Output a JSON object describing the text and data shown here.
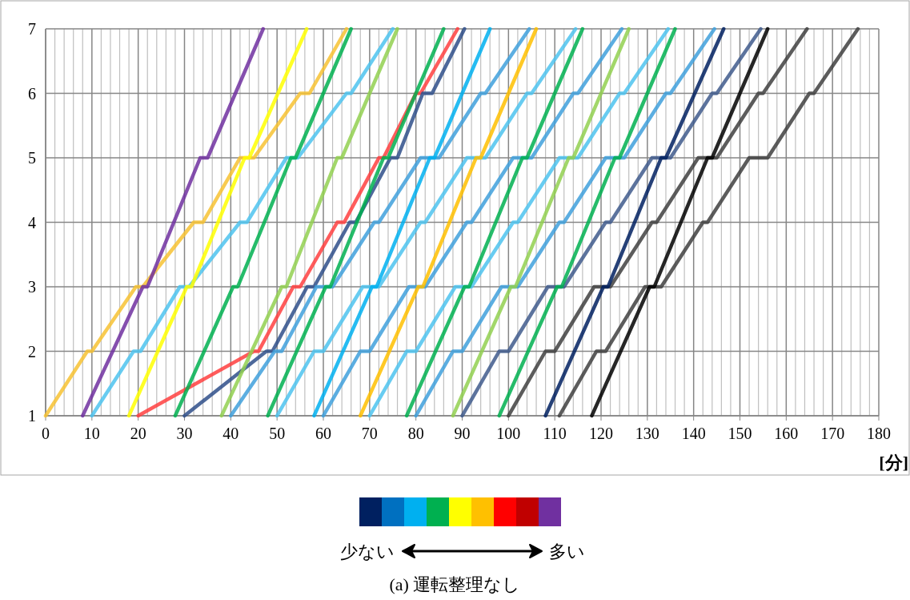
{
  "chart_data": [
    {
      "type": "line",
      "xlabel": "[分]",
      "xlim": [
        0,
        180
      ],
      "ylim": [
        1,
        7
      ],
      "grid": true,
      "line_style": "solid",
      "xticks": [
        0,
        {
          "value": 2,
          "label": null
        },
        {
          "value": 4,
          "label": null
        },
        {
          "value": 6,
          "label": null
        },
        {
          "value": 8,
          "label": null
        },
        10,
        {
          "value": 12,
          "label": null
        },
        {
          "value": 14,
          "label": null
        },
        {
          "value": 16,
          "label": null
        },
        {
          "value": 18,
          "label": null
        },
        20,
        {
          "value": 22,
          "label": null
        },
        {
          "value": 24,
          "label": null
        },
        {
          "value": 26,
          "label": null
        },
        {
          "value": 28,
          "label": null
        },
        30,
        {
          "value": 32,
          "label": null
        },
        {
          "value": 34,
          "label": null
        },
        {
          "value": 36,
          "label": null
        },
        {
          "value": 38,
          "label": null
        },
        40,
        {
          "value": 42,
          "label": null
        },
        {
          "value": 44,
          "label": null
        },
        {
          "value": 46,
          "label": null
        },
        {
          "value": 48,
          "label": null
        },
        50,
        {
          "value": 52,
          "label": null
        },
        {
          "value": 54,
          "label": null
        },
        {
          "value": 56,
          "label": null
        },
        {
          "value": 58,
          "label": null
        },
        60,
        {
          "value": 62,
          "label": null
        },
        {
          "value": 64,
          "label": null
        },
        {
          "value": 66,
          "label": null
        },
        {
          "value": 68,
          "label": null
        },
        70,
        {
          "value": 72,
          "label": null
        },
        {
          "value": 74,
          "label": null
        },
        {
          "value": 76,
          "label": null
        },
        {
          "value": 78,
          "label": null
        },
        80,
        {
          "value": 82,
          "label": null
        },
        {
          "value": 84,
          "label": null
        },
        {
          "value": 86,
          "label": null
        },
        {
          "value": 88,
          "label": null
        },
        90,
        {
          "value": 92,
          "label": null
        },
        {
          "value": 94,
          "label": null
        },
        {
          "value": 96,
          "label": null
        },
        {
          "value": 98,
          "label": null
        },
        100,
        {
          "value": 102,
          "label": null
        },
        {
          "value": 104,
          "label": null
        },
        {
          "value": 106,
          "label": null
        },
        {
          "value": 108,
          "label": null
        },
        110,
        {
          "value": 112,
          "label": null
        },
        {
          "value": 114,
          "label": null
        },
        {
          "value": 116,
          "label": null
        },
        {
          "value": 118,
          "label": null
        },
        120,
        {
          "value": 122,
          "label": null
        },
        {
          "value": 124,
          "label": null
        },
        {
          "value": 126,
          "label": null
        },
        {
          "value": 128,
          "label": null
        },
        130,
        {
          "value": 132,
          "label": null
        },
        {
          "value": 134,
          "label": null
        },
        {
          "value": 136,
          "label": null
        },
        {
          "value": 138,
          "label": null
        },
        140,
        {
          "value": 142,
          "label": null
        },
        {
          "value": 144,
          "label": null
        },
        {
          "value": 146,
          "label": null
        },
        {
          "value": 148,
          "label": null
        },
        150,
        {
          "value": 152,
          "label": null
        },
        {
          "value": 154,
          "label": null
        },
        {
          "value": 156,
          "label": null
        },
        {
          "value": 158,
          "label": null
        },
        160,
        {
          "value": 162,
          "label": null
        },
        {
          "value": 164,
          "label": null
        },
        {
          "value": 166,
          "label": null
        },
        {
          "value": 168,
          "label": null
        },
        170,
        {
          "value": 172,
          "label": null
        },
        {
          "value": 174,
          "label": null
        },
        {
          "value": 176,
          "label": null
        },
        {
          "value": 178,
          "label": null
        },
        180
      ],
      "yticks": [
        1,
        2,
        3,
        4,
        5,
        6,
        7
      ],
      "annotations": [
        "(a) 運転整理なし"
      ],
      "series": [
        {
          "color": "#f7c232",
          "x": [
            0,
            9,
            10,
            19.5,
            21,
            32,
            34,
            42,
            45,
            55,
            57,
            65
          ],
          "values": [
            1,
            2,
            2,
            3,
            3,
            4,
            4,
            5,
            5,
            6,
            6,
            7
          ]
        },
        {
          "color": "#4dc3ee",
          "x": [
            10,
            19,
            20.5,
            29,
            31,
            42,
            43.5,
            52,
            54.5,
            65,
            66,
            75
          ],
          "values": [
            1,
            2,
            2,
            3,
            3,
            4,
            4,
            5,
            5,
            6,
            6,
            7
          ]
        },
        {
          "color": "#ff4040",
          "x": [
            20,
            45,
            46,
            53.5,
            55,
            63,
            64.5,
            72,
            73,
            80,
            81,
            89
          ],
          "values": [
            1,
            2,
            2,
            3,
            3,
            4,
            4,
            5,
            5,
            6,
            6,
            7
          ]
        },
        {
          "color": "#2f4f8a",
          "x": [
            30,
            47.7,
            49,
            56.5,
            58,
            65.7,
            67,
            74.5,
            76,
            81.5,
            83.5,
            90.5
          ],
          "values": [
            1,
            2,
            2,
            3,
            3,
            4,
            4,
            5,
            5,
            6,
            6,
            7
          ]
        },
        {
          "color": "#3fa0dc",
          "x": [
            40,
            49.5,
            51,
            58.5,
            62,
            71,
            72,
            81,
            85,
            94,
            95,
            104.5
          ],
          "values": [
            1,
            2,
            2,
            3,
            3,
            4,
            4,
            5,
            5,
            6,
            6,
            7
          ]
        },
        {
          "color": "#4dc3ee",
          "x": [
            50,
            58,
            60,
            68.5,
            72,
            81,
            82,
            91,
            95,
            104,
            105,
            114.5
          ],
          "values": [
            1,
            2,
            2,
            3,
            3,
            4,
            4,
            5,
            5,
            6,
            6,
            7
          ]
        },
        {
          "color": "#3fa0dc",
          "x": [
            60,
            68,
            70,
            78.5,
            82,
            91,
            92,
            101,
            105,
            114,
            115,
            124.5
          ],
          "values": [
            1,
            2,
            2,
            3,
            3,
            4,
            4,
            5,
            5,
            6,
            6,
            7
          ]
        },
        {
          "color": "#4dc3ee",
          "x": [
            70,
            78,
            80,
            88.5,
            92,
            101,
            102,
            111,
            115,
            124,
            125,
            134.5
          ],
          "values": [
            1,
            2,
            2,
            3,
            3,
            4,
            4,
            5,
            5,
            6,
            6,
            7
          ]
        },
        {
          "color": "#3fa0dc",
          "x": [
            80,
            88,
            90,
            98.5,
            102,
            111,
            112,
            121,
            125,
            134,
            135,
            144.5
          ],
          "values": [
            1,
            2,
            2,
            3,
            3,
            4,
            4,
            5,
            5,
            6,
            6,
            7
          ]
        },
        {
          "color": "#3f5a8c",
          "x": [
            90,
            98,
            100,
            108.5,
            112,
            121,
            122,
            131,
            135,
            144,
            145,
            154.5
          ],
          "values": [
            1,
            2,
            2,
            3,
            3,
            4,
            4,
            5,
            5,
            6,
            6,
            7
          ]
        },
        {
          "color": "#404040",
          "x": [
            100,
            108,
            110,
            118.5,
            122,
            131,
            132,
            141,
            145,
            154,
            155,
            164.5
          ],
          "values": [
            1,
            2,
            2,
            3,
            3,
            4,
            4,
            5,
            5,
            6,
            6,
            7
          ]
        },
        {
          "color": "#404040",
          "x": [
            111,
            119,
            121,
            129.5,
            133,
            142,
            143,
            152,
            156,
            165,
            166,
            175.5
          ],
          "values": [
            1,
            2,
            2,
            3,
            3,
            4,
            4,
            5,
            5,
            6,
            6,
            7
          ]
        },
        {
          "color": "#7030a0",
          "x": [
            8,
            21,
            22,
            33.4,
            35,
            47
          ],
          "values": [
            1,
            3,
            3,
            5,
            5,
            7
          ]
        },
        {
          "color": "#ffff00",
          "x": [
            18,
            30.5,
            31.5,
            43,
            44,
            56.4
          ],
          "values": [
            1,
            3,
            3,
            5,
            5,
            7
          ]
        },
        {
          "color": "#00b050",
          "x": [
            28,
            40.5,
            41.5,
            53,
            54,
            66
          ],
          "values": [
            1,
            3,
            3,
            5,
            5,
            7
          ]
        },
        {
          "color": "#92d050",
          "x": [
            38,
            51,
            52,
            63,
            64,
            76
          ],
          "values": [
            1,
            3,
            3,
            5,
            5,
            7
          ]
        },
        {
          "color": "#00b050",
          "x": [
            48,
            60.5,
            61.5,
            73,
            74,
            86
          ],
          "values": [
            1,
            3,
            3,
            5,
            5,
            7
          ]
        },
        {
          "color": "#00b0f0",
          "x": [
            58,
            70.5,
            71.5,
            83,
            84,
            96
          ],
          "values": [
            1,
            3,
            3,
            5,
            5,
            7
          ]
        },
        {
          "color": "#ffc000",
          "x": [
            68,
            80.5,
            81.5,
            93,
            94,
            106
          ],
          "values": [
            1,
            3,
            3,
            5,
            5,
            7
          ]
        },
        {
          "color": "#00b050",
          "x": [
            78,
            90.5,
            91.5,
            103,
            104,
            116
          ],
          "values": [
            1,
            3,
            3,
            5,
            5,
            7
          ]
        },
        {
          "color": "#92d050",
          "x": [
            88,
            100.5,
            101.5,
            113,
            114,
            126
          ],
          "values": [
            1,
            3,
            3,
            5,
            5,
            7
          ]
        },
        {
          "color": "#00b050",
          "x": [
            98,
            110.5,
            111.5,
            123,
            124,
            136
          ],
          "values": [
            1,
            3,
            3,
            5,
            5,
            7
          ]
        },
        {
          "color": "#002060",
          "x": [
            108,
            120.5,
            121.5,
            133,
            134,
            146.5
          ],
          "values": [
            1,
            3,
            3,
            5,
            5,
            7
          ]
        },
        {
          "color": "#000000",
          "x": [
            118,
            130.5,
            131.5,
            143,
            144,
            156
          ],
          "values": [
            1,
            3,
            3,
            5,
            5,
            7
          ]
        }
      ]
    },
    {
      "type": "other",
      "colors": [
        "#002060",
        "#0070c0",
        "#00b0f0",
        "#00b050",
        "#ffff00",
        "#ffc000",
        "#ff0000",
        "#c00000",
        "#7030a0"
      ],
      "annotations": [
        "少ない",
        "多い"
      ]
    }
  ]
}
